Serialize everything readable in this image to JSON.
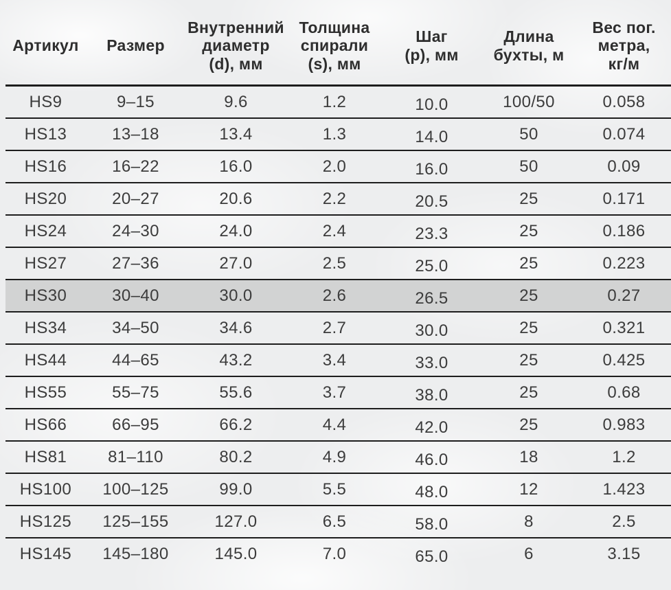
{
  "table": {
    "columns": [
      "Артикул",
      "Размер",
      "Внутренний\nдиаметр\n(d), мм",
      "Толщина\nспирали\n(s), мм",
      "Шаг\n(p), мм",
      "Длина\nбухты, м",
      "Вес пог.\nметра,\nкг/м"
    ],
    "rows": [
      [
        "HS9",
        "9–15",
        "9.6",
        "1.2",
        "10.0",
        "100/50",
        "0.058"
      ],
      [
        "HS13",
        "13–18",
        "13.4",
        "1.3",
        "14.0",
        "50",
        "0.074"
      ],
      [
        "HS16",
        "16–22",
        "16.0",
        "2.0",
        "16.0",
        "50",
        "0.09"
      ],
      [
        "HS20",
        "20–27",
        "20.6",
        "2.2",
        "20.5",
        "25",
        "0.171"
      ],
      [
        "HS24",
        "24–30",
        "24.0",
        "2.4",
        "23.3",
        "25",
        "0.186"
      ],
      [
        "HS27",
        "27–36",
        "27.0",
        "2.5",
        "25.0",
        "25",
        "0.223"
      ],
      [
        "HS30",
        "30–40",
        "30.0",
        "2.6",
        "26.5",
        "25",
        "0.27"
      ],
      [
        "HS34",
        "34–50",
        "34.6",
        "2.7",
        "30.0",
        "25",
        "0.321"
      ],
      [
        "HS44",
        "44–65",
        "43.2",
        "3.4",
        "33.0",
        "25",
        "0.425"
      ],
      [
        "HS55",
        "55–75",
        "55.6",
        "3.7",
        "38.0",
        "25",
        "0.68"
      ],
      [
        "HS66",
        "66–95",
        "66.2",
        "4.4",
        "42.0",
        "25",
        "0.983"
      ],
      [
        "HS81",
        "81–110",
        "80.2",
        "4.9",
        "46.0",
        "18",
        "1.2"
      ],
      [
        "HS100",
        "100–125",
        "99.0",
        "5.5",
        "48.0",
        "12",
        "1.423"
      ],
      [
        "HS125",
        "125–155",
        "127.0",
        "6.5",
        "58.0",
        "8",
        "2.5"
      ],
      [
        "HS145",
        "145–180",
        "145.0",
        "7.0",
        "65.0",
        "6",
        "3.15"
      ]
    ],
    "highlighted_row_index": 6
  },
  "colors": {
    "background": "#edeeef",
    "highlight_row": "#d2d3d3",
    "line": "#1d1d1d",
    "text": "#3c3c3c"
  }
}
